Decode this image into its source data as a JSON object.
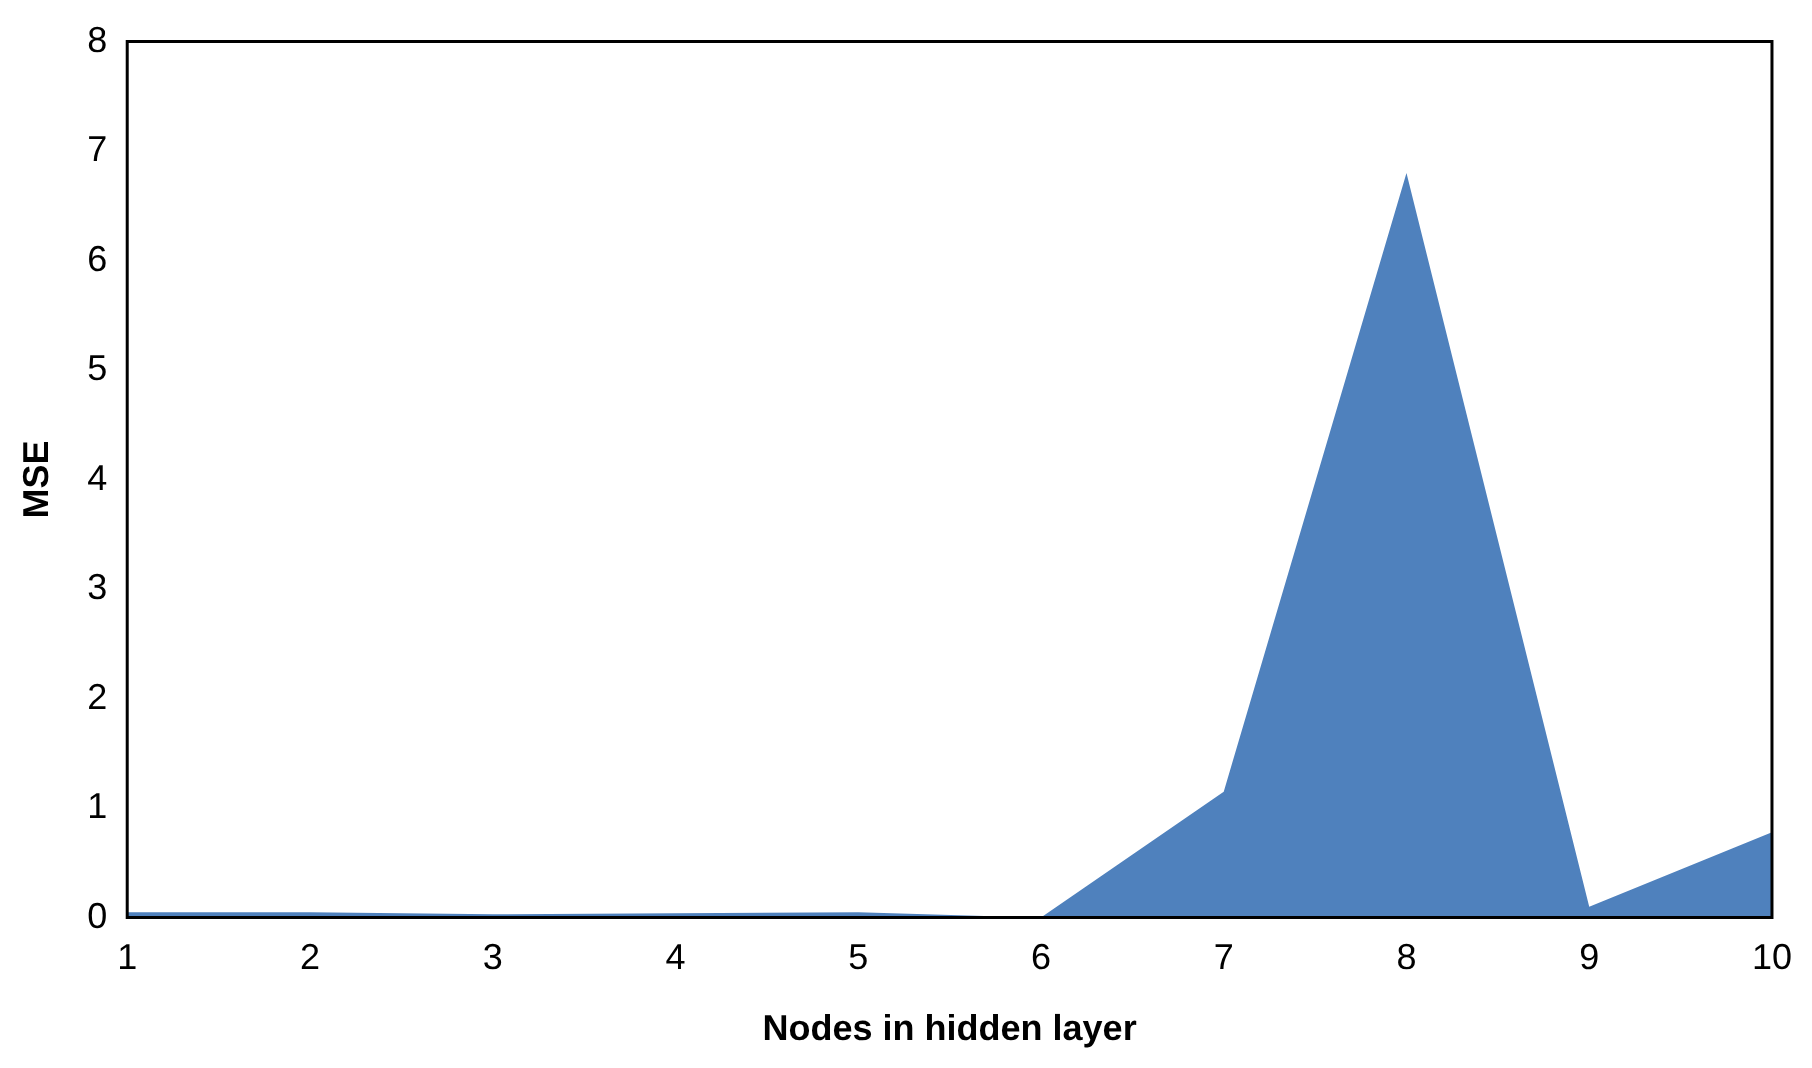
{
  "chart_data": {
    "type": "area",
    "xlabel": "Nodes in hidden layer",
    "ylabel": "MSE",
    "categories": [
      "1",
      "2",
      "3",
      "4",
      "5",
      "6",
      "7",
      "8",
      "9",
      "10"
    ],
    "values": [
      0.05,
      0.05,
      0.03,
      0.04,
      0.05,
      0.0,
      1.15,
      6.8,
      0.1,
      0.78
    ],
    "color": "#4f81bd",
    "ylim": [
      0,
      8
    ],
    "yticks": [
      0,
      1,
      2,
      3,
      4,
      5,
      6,
      7,
      8
    ],
    "grid": false,
    "legend": false
  }
}
